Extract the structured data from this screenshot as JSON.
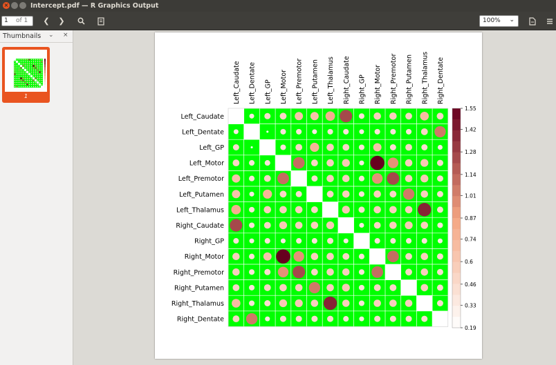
{
  "window": {
    "title": "Intercept.pdf — R Graphics Output"
  },
  "toolbar": {
    "page_current": "1",
    "page_of": "of 1",
    "zoom": "100%",
    "prev_icon": "chevron-left-icon",
    "next_icon": "chevron-right-icon",
    "search_icon": "search-icon",
    "annot_icon": "annotation-icon",
    "export_icon": "document-export-icon",
    "menu_icon": "hamburger-menu-icon"
  },
  "sidebar": {
    "title": "Thumbnails",
    "dropdown_glyph": "⌄",
    "close_glyph": "×",
    "thumbnails": [
      {
        "label": "1"
      }
    ]
  },
  "colors": {
    "accent": "#e95420",
    "cell_bg": "#00ff00",
    "scale_low": "#ffffff",
    "scale_mid": "#f4a582",
    "scale_high": "#67001f"
  },
  "chart_data": {
    "type": "heatmap",
    "labels": [
      "Left_Caudate",
      "Left_Dentate",
      "Left_GP",
      "Left_Motor",
      "Left_Premotor",
      "Left_Putamen",
      "Left_Thalamus",
      "Right_Caudate",
      "Right_GP",
      "Right_Motor",
      "Right_Premotor",
      "Right_Putamen",
      "Right_Thalamus",
      "Right_Dentate"
    ],
    "matrix": [
      [
        null,
        0.35,
        0.45,
        0.5,
        0.65,
        0.65,
        0.8,
        1.25,
        0.4,
        0.55,
        0.55,
        0.5,
        0.7,
        0.5
      ],
      [
        0.35,
        null,
        0.22,
        0.4,
        0.4,
        0.35,
        0.4,
        0.4,
        0.35,
        0.4,
        0.4,
        0.4,
        0.5,
        1.05
      ],
      [
        0.45,
        0.22,
        null,
        0.4,
        0.5,
        0.75,
        0.55,
        0.5,
        0.4,
        0.65,
        0.45,
        0.5,
        0.45,
        0.35
      ],
      [
        0.5,
        0.4,
        0.4,
        null,
        1.1,
        0.5,
        0.55,
        0.6,
        0.35,
        1.55,
        0.95,
        0.55,
        0.6,
        0.45
      ],
      [
        0.65,
        0.4,
        0.5,
        1.1,
        null,
        0.45,
        0.55,
        0.55,
        0.4,
        0.95,
        1.25,
        0.55,
        0.6,
        0.45
      ],
      [
        0.65,
        0.35,
        0.75,
        0.5,
        0.45,
        null,
        0.5,
        0.55,
        0.4,
        0.55,
        0.5,
        1.05,
        0.55,
        0.45
      ],
      [
        0.8,
        0.4,
        0.55,
        0.55,
        0.55,
        0.5,
        null,
        0.6,
        0.45,
        0.55,
        0.55,
        0.55,
        1.4,
        0.45
      ],
      [
        1.25,
        0.4,
        0.5,
        0.6,
        0.55,
        0.55,
        0.6,
        null,
        0.35,
        0.5,
        0.55,
        0.6,
        0.55,
        0.4
      ],
      [
        0.4,
        0.35,
        0.4,
        0.35,
        0.4,
        0.4,
        0.45,
        0.35,
        null,
        0.4,
        0.4,
        0.4,
        0.4,
        0.35
      ],
      [
        0.55,
        0.4,
        0.65,
        1.55,
        0.95,
        0.55,
        0.55,
        0.5,
        0.4,
        null,
        1.1,
        0.5,
        0.55,
        0.45
      ],
      [
        0.55,
        0.4,
        0.45,
        0.95,
        1.25,
        0.5,
        0.55,
        0.55,
        0.4,
        1.1,
        null,
        0.5,
        0.55,
        0.45
      ],
      [
        0.5,
        0.4,
        0.5,
        0.55,
        0.55,
        1.05,
        0.55,
        0.6,
        0.4,
        0.5,
        0.5,
        null,
        0.55,
        0.45
      ],
      [
        0.7,
        0.4,
        0.45,
        0.6,
        0.6,
        0.55,
        1.4,
        0.55,
        0.4,
        0.55,
        0.55,
        0.55,
        null,
        0.45
      ],
      [
        0.5,
        1.05,
        0.35,
        0.45,
        0.45,
        0.45,
        0.45,
        0.4,
        0.35,
        0.45,
        0.45,
        0.45,
        0.45,
        null
      ]
    ],
    "colorbar_ticks": [
      "1.55",
      "1.42",
      "1.28",
      "1.14",
      "1.01",
      "0.87",
      "0.74",
      "0.6",
      "0.46",
      "0.33",
      "0.19"
    ],
    "range": [
      0.19,
      1.55
    ],
    "marker": "circle"
  }
}
